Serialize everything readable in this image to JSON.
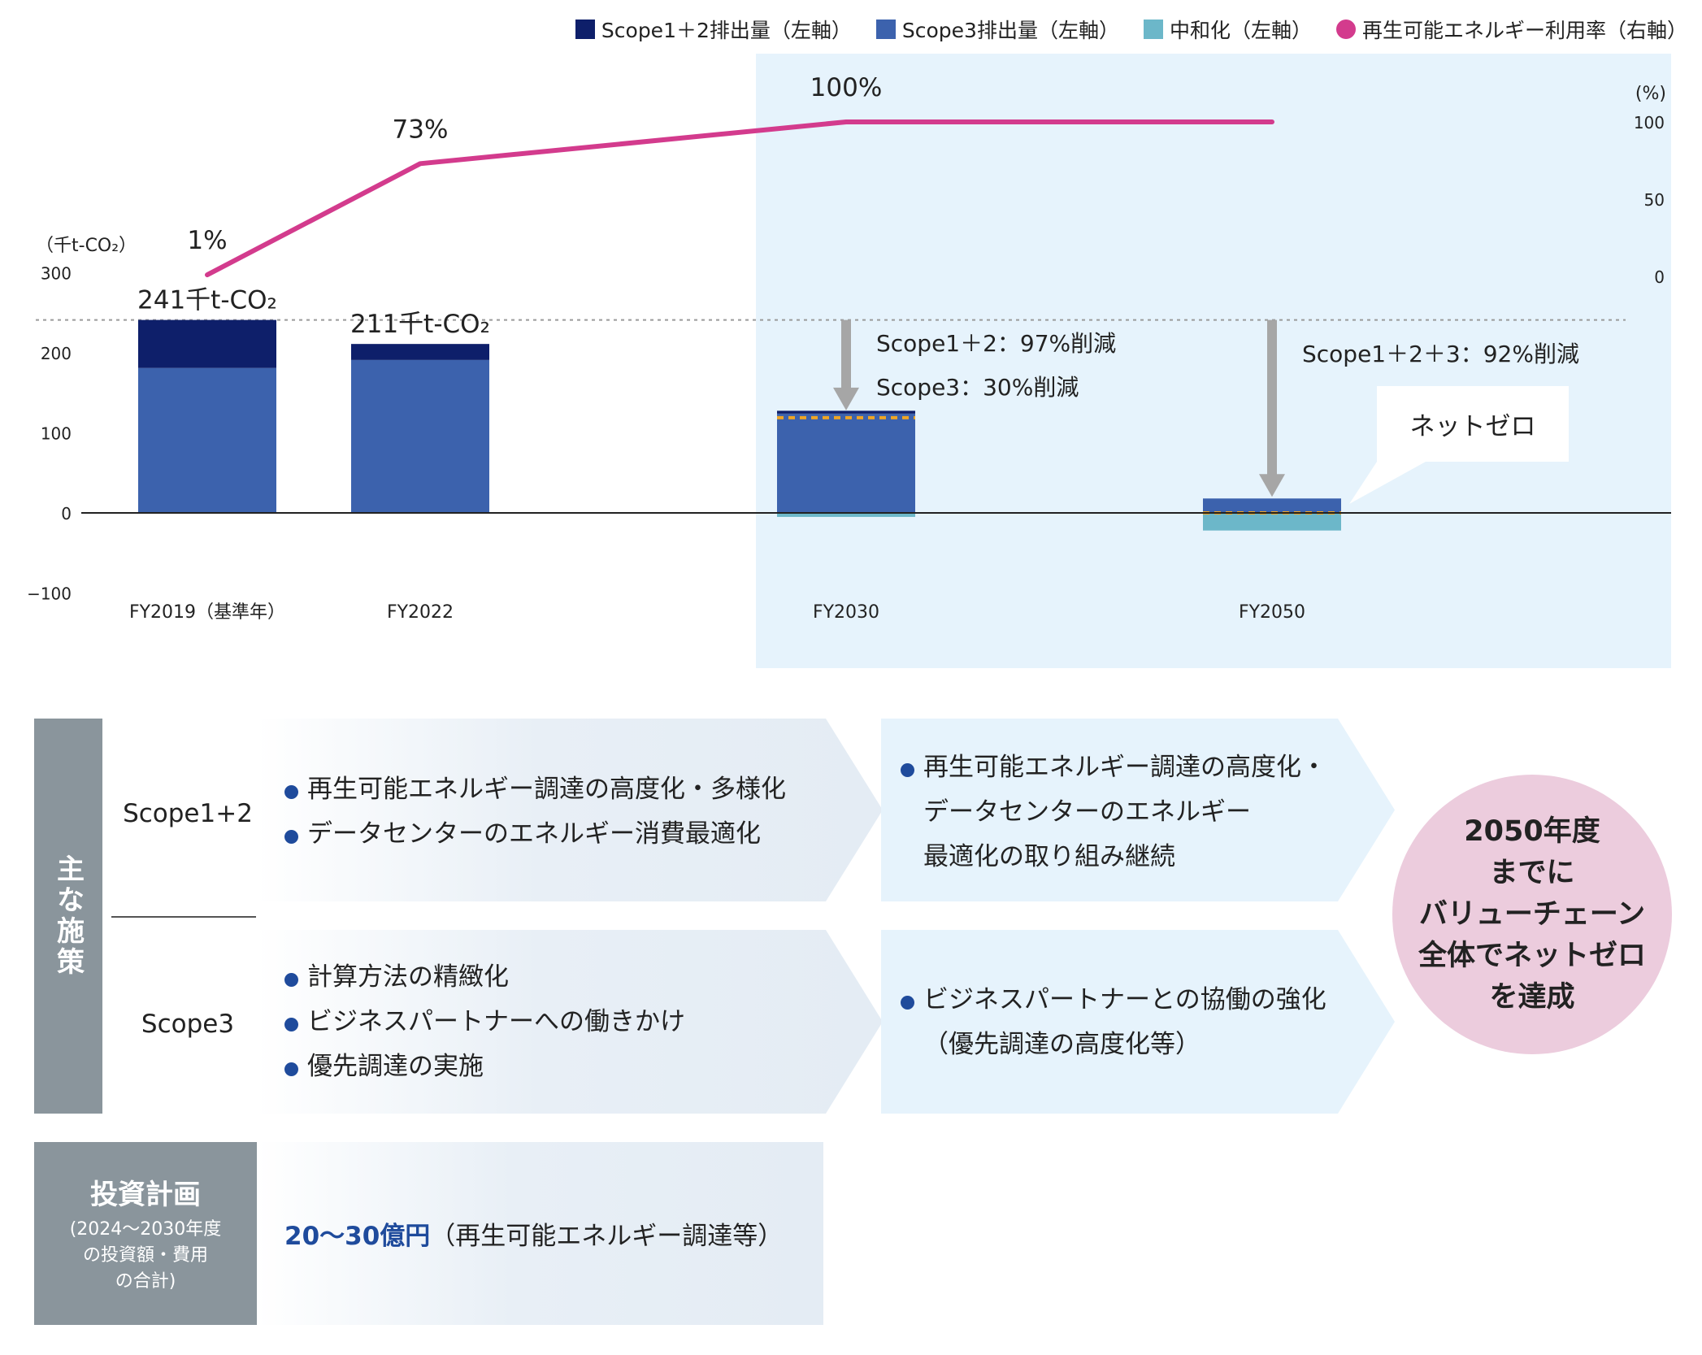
{
  "legend": [
    {
      "label": "Scope1＋2排出量（左軸）",
      "color": "#0e1f6a",
      "shape": "square"
    },
    {
      "label": "Scope3排出量（左軸）",
      "color": "#3c62ad",
      "shape": "square"
    },
    {
      "label": "中和化（左軸）",
      "color": "#6cb7c9",
      "shape": "square"
    },
    {
      "label": "再生可能エネルギー利用率（右軸）",
      "color": "#d33b8d",
      "shape": "circle"
    }
  ],
  "chart_data": {
    "type": "bar",
    "categories": [
      "FY2019（基準年）",
      "FY2022",
      "FY2030",
      "FY2050"
    ],
    "left_axis": {
      "unit_label": "（千t-CO₂）",
      "ylim": [
        -100,
        300
      ],
      "ticks": [
        "300",
        "200",
        "100",
        "0",
        "−100"
      ],
      "tick_values": [
        300,
        200,
        100,
        0,
        -100
      ]
    },
    "right_axis": {
      "unit_label": "(%)",
      "ticks": [
        "100",
        "50",
        "0"
      ],
      "tick_values": [
        100,
        50,
        0
      ]
    },
    "series": [
      {
        "name": "Scope1＋2排出量（左軸）",
        "values": [
          60,
          20,
          2,
          0
        ]
      },
      {
        "name": "Scope3排出量（左軸）",
        "values": [
          181,
          191,
          124,
          18
        ]
      },
      {
        "name": "中和化（左軸）",
        "values": [
          0,
          0,
          -5,
          -22
        ]
      }
    ],
    "line_series": {
      "name": "再生可能エネルギー利用率（右軸）",
      "values": [
        1,
        73,
        100,
        100
      ],
      "labels": [
        "1%",
        "73%",
        "100%",
        ""
      ]
    },
    "bar_labels": [
      "241千t-CO₂",
      "211千t-CO₂",
      "",
      ""
    ],
    "baseline_reference": 241,
    "annotations": [
      {
        "category": "FY2030",
        "lines": [
          "Scope1＋2：97%削減",
          "Scope3：30%削減"
        ]
      },
      {
        "category": "FY2050",
        "lines": [
          "Scope1＋2＋3：92%削減"
        ]
      }
    ],
    "callout": "ネットゼロ",
    "future_region": [
      "FY2030",
      "FY2050"
    ],
    "colors": {
      "scope12": "#0e1f6a",
      "scope3": "#3c62ad",
      "neutral": "#6cb7c9",
      "line": "#d33b8d",
      "future_bg": "#e6f3fc",
      "arrow": "#a6a6a6",
      "dash": "#f0a524"
    }
  },
  "measures": {
    "label": "主な施策",
    "rows": [
      {
        "scope": "Scope1+2",
        "current": [
          "再生可能エネルギー調達の高度化・多様化",
          "データセンターのエネルギー消費最適化"
        ],
        "future": [
          "再生可能エネルギー調達の高度化・",
          "データセンターのエネルギー",
          "最適化の取り組み継続"
        ]
      },
      {
        "scope": "Scope3",
        "current": [
          "計算方法の精緻化",
          "ビジネスパートナーへの働きかけ",
          "優先調達の実施"
        ],
        "future": [
          "ビジネスパートナーとの協働の強化",
          "（優先調達の高度化等）"
        ]
      }
    ],
    "goal": "2050年度\nまでに\nバリューチェーン\n全体でネットゼロ\nを達成"
  },
  "investment": {
    "title": "投資計画",
    "subtitle": "(2024〜2030年度\nの投資額・費用\nの合計)",
    "amount": "20〜30億円",
    "note": "（再生可能エネルギー調達等）"
  }
}
